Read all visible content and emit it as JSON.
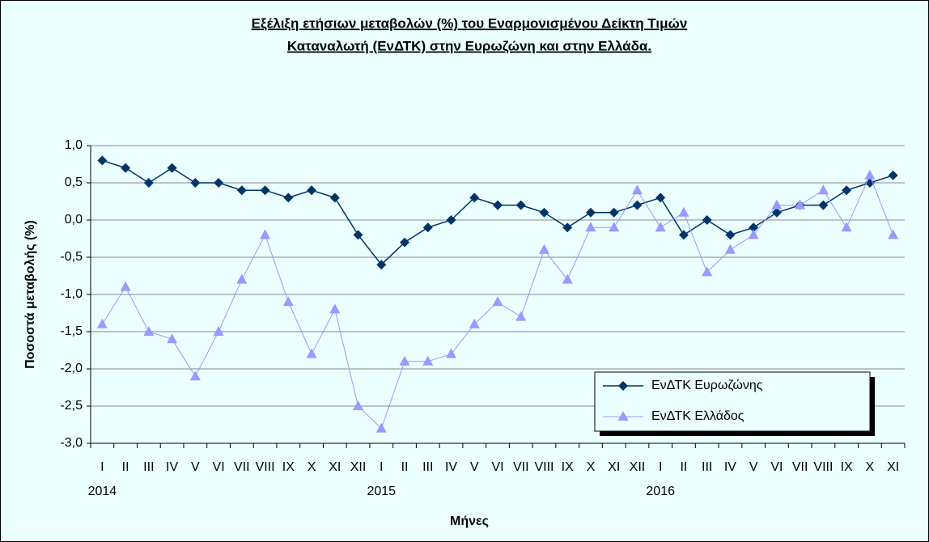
{
  "chart_data": {
    "type": "line",
    "title": [
      "Εξέλιξη ετήσιων μεταβολών (%) του Εναρμονισμένου Δείκτη Τιμών",
      "Καταναλωτή (ΕνΔΤΚ) στην Ευρωζώνη  και στην Ελλάδα."
    ],
    "xlabel": "Μήνες",
    "ylabel": "Ποσοστά μεταβολής (%)",
    "categories": [
      "I",
      "II",
      "III",
      "IV",
      "V",
      "VI",
      "VII",
      "VIII",
      "IX",
      "X",
      "XI",
      "XII",
      "I",
      "II",
      "III",
      "IV",
      "V",
      "VI",
      "VII",
      "VIII",
      "IX",
      "X",
      "XI",
      "XII",
      "I",
      "II",
      "III",
      "IV",
      "V",
      "VI",
      "VII",
      "VIII",
      "IX",
      "X",
      "XI"
    ],
    "category_years": [
      "2014",
      null,
      null,
      null,
      null,
      null,
      null,
      null,
      null,
      null,
      null,
      null,
      "2015",
      null,
      null,
      null,
      null,
      null,
      null,
      null,
      null,
      null,
      null,
      null,
      "2016",
      null,
      null,
      null,
      null,
      null,
      null,
      null,
      null,
      null,
      null
    ],
    "series": [
      {
        "name": "ΕνΔΤΚ Ευρωζώνης",
        "color": "#003366",
        "marker": "diamond",
        "values": [
          0.8,
          0.7,
          0.5,
          0.7,
          0.5,
          0.5,
          0.4,
          0.4,
          0.3,
          0.4,
          0.3,
          -0.2,
          -0.6,
          -0.3,
          -0.1,
          0.0,
          0.3,
          0.2,
          0.2,
          0.1,
          -0.1,
          0.1,
          0.1,
          0.2,
          0.3,
          -0.2,
          0.0,
          -0.2,
          -0.1,
          0.1,
          0.2,
          0.2,
          0.4,
          0.5,
          0.6
        ]
      },
      {
        "name": "ΕνΔΤΚ Ελλάδος",
        "color": "#9999ff",
        "marker": "triangle",
        "values": [
          -1.4,
          -0.9,
          -1.5,
          -1.6,
          -2.1,
          -1.5,
          -0.8,
          -0.2,
          -1.1,
          -1.8,
          -1.2,
          -2.5,
          -2.8,
          -1.9,
          -1.9,
          -1.8,
          -1.4,
          -1.1,
          -1.3,
          -0.4,
          -0.8,
          -0.1,
          -0.1,
          0.4,
          -0.1,
          0.1,
          -0.7,
          -0.4,
          -0.2,
          0.2,
          0.2,
          0.4,
          -0.1,
          0.6,
          -0.2
        ]
      }
    ],
    "ylim": [
      -3,
      1
    ],
    "yticks": [
      {
        "value": -3,
        "label": "-3,0"
      },
      {
        "value": -2.5,
        "label": "-2,5"
      },
      {
        "value": -2,
        "label": "-2,0"
      },
      {
        "value": -1.5,
        "label": "-1,5"
      },
      {
        "value": -1,
        "label": "-1,0"
      },
      {
        "value": -0.5,
        "label": "-0,5"
      },
      {
        "value": 0,
        "label": "0,0"
      },
      {
        "value": 0.5,
        "label": "0,5"
      },
      {
        "value": 1,
        "label": "1,0"
      }
    ],
    "grid": true
  }
}
